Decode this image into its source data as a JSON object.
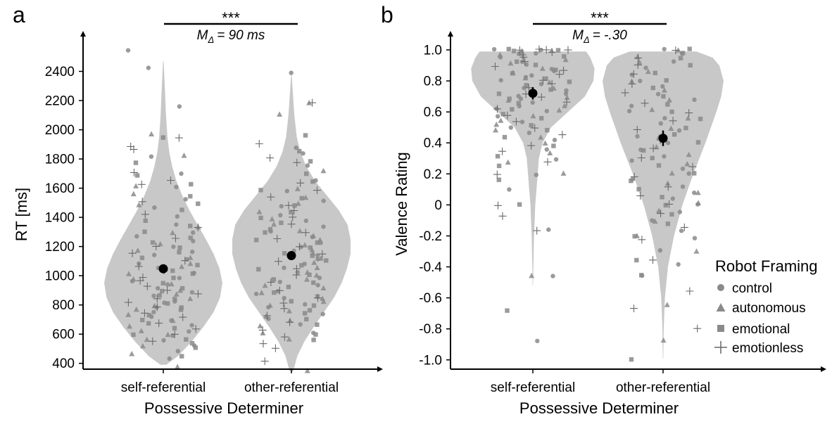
{
  "colors": {
    "violin": "#c8c8c8",
    "marker": "#8a8a8a",
    "mean": "#000000",
    "axis": "#000000"
  },
  "chart_data": [
    {
      "type": "violin",
      "panel_label": "a",
      "xlabel": "Possessive Determiner",
      "ylabel": "RT [ms]",
      "categories": [
        "self-referential",
        "other-referential"
      ],
      "ylim": [
        360,
        2600
      ],
      "yticks": [
        400,
        600,
        800,
        1000,
        1200,
        1400,
        1600,
        1800,
        2000,
        2200,
        2400
      ],
      "ytick_labels": [
        "400",
        "600",
        "800",
        "1000",
        "1200",
        "1400",
        "1600",
        "1800",
        "2000",
        "2200",
        "2400"
      ],
      "means": [
        1048,
        1138
      ],
      "error": [
        30,
        30
      ],
      "significance": {
        "stars": "***",
        "label": "M",
        "subscript": "Δ",
        "value_text": "= 90 ms"
      },
      "violins": [
        {
          "min": 390,
          "max": 2470,
          "widths": [
            [
              390,
              0.05
            ],
            [
              450,
              0.25
            ],
            [
              550,
              0.48
            ],
            [
              650,
              0.68
            ],
            [
              750,
              0.85
            ],
            [
              850,
              0.96
            ],
            [
              950,
              1.0
            ],
            [
              1050,
              0.95
            ],
            [
              1150,
              0.85
            ],
            [
              1250,
              0.72
            ],
            [
              1350,
              0.58
            ],
            [
              1450,
              0.44
            ],
            [
              1550,
              0.32
            ],
            [
              1650,
              0.22
            ],
            [
              1750,
              0.15
            ],
            [
              1850,
              0.1
            ],
            [
              1950,
              0.07
            ],
            [
              2100,
              0.045
            ],
            [
              2300,
              0.025
            ],
            [
              2470,
              0.005
            ]
          ]
        },
        {
          "min": 345,
          "max": 2380,
          "widths": [
            [
              345,
              0.03
            ],
            [
              450,
              0.1
            ],
            [
              550,
              0.22
            ],
            [
              650,
              0.38
            ],
            [
              750,
              0.55
            ],
            [
              850,
              0.72
            ],
            [
              950,
              0.85
            ],
            [
              1050,
              0.94
            ],
            [
              1150,
              1.0
            ],
            [
              1250,
              1.0
            ],
            [
              1350,
              0.95
            ],
            [
              1450,
              0.8
            ],
            [
              1550,
              0.6
            ],
            [
              1650,
              0.4
            ],
            [
              1750,
              0.25
            ],
            [
              1850,
              0.15
            ],
            [
              1950,
              0.09
            ],
            [
              2100,
              0.05
            ],
            [
              2250,
              0.025
            ],
            [
              2380,
              0.005
            ]
          ]
        }
      ],
      "points": {
        "self-referential": {
          "control": [
            2550,
            2420,
            2160,
            1820,
            1700,
            1610,
            1520,
            1470,
            1400,
            1350,
            1300,
            1270,
            1240,
            1200,
            1170,
            1140,
            1110,
            1080,
            1050,
            1020,
            990,
            960,
            940,
            910,
            880,
            860,
            830,
            810,
            780,
            750,
            720,
            690,
            660,
            620,
            590,
            560,
            520,
            480,
            430
          ],
          "autonomous": [
            1970,
            1830,
            1620,
            1560,
            1480,
            1330,
            1290,
            1220,
            1180,
            1130,
            1090,
            1060,
            1010,
            970,
            940,
            900,
            870,
            840,
            800,
            770,
            740,
            700,
            660,
            630,
            600,
            560,
            520,
            470,
            380
          ],
          "emotional": [
            1940,
            1780,
            1690,
            1620,
            1550,
            1500,
            1450,
            1380,
            1340,
            1300,
            1260,
            1230,
            1190,
            1160,
            1120,
            1080,
            1040,
            1010,
            980,
            950,
            920,
            890,
            860,
            840,
            810,
            780,
            760,
            730,
            700,
            670,
            640,
            600,
            570,
            540,
            500,
            450
          ],
          "emotionless": [
            1950,
            1880,
            1860,
            1700,
            1660,
            1620,
            1510,
            1420,
            1330,
            1260,
            1200,
            1150,
            1110,
            1070,
            1030,
            990,
            960,
            930,
            900,
            870,
            840,
            810,
            780,
            750,
            720,
            680,
            640,
            600,
            550
          ]
        },
        "other-referential": {
          "control": [
            2390,
            1880,
            1840,
            1760,
            1660,
            1580,
            1520,
            1470,
            1420,
            1380,
            1340,
            1300,
            1260,
            1230,
            1200,
            1170,
            1140,
            1110,
            1080,
            1050,
            1020,
            990,
            960,
            930,
            900,
            870,
            840,
            810,
            780,
            740,
            700,
            660,
            610
          ],
          "autonomous": [
            2180,
            2110,
            1720,
            1600,
            1540,
            1490,
            1440,
            1390,
            1350,
            1310,
            1270,
            1240,
            1210,
            1180,
            1150,
            1120,
            1090,
            1060,
            1030,
            1000,
            970,
            940,
            910,
            880,
            850,
            820,
            790,
            760,
            720,
            690,
            650,
            610,
            570,
            350
          ],
          "emotional": [
            1960,
            1860,
            1790,
            1700,
            1640,
            1590,
            1530,
            1480,
            1430,
            1390,
            1360,
            1320,
            1290,
            1250,
            1220,
            1190,
            1160,
            1130,
            1100,
            1070,
            1040,
            1010,
            980,
            950,
            920,
            890,
            860,
            830,
            800,
            770,
            740,
            700,
            660,
            600,
            560
          ],
          "emotionless": [
            2190,
            1900,
            1800,
            1780,
            1640,
            1590,
            1540,
            1480,
            1450,
            1400,
            1350,
            1300,
            1250,
            1200,
            1150,
            1100,
            1050,
            1000,
            950,
            900,
            850,
            810,
            770,
            720,
            680,
            630,
            580,
            540,
            500,
            410
          ]
        }
      }
    },
    {
      "type": "violin",
      "panel_label": "b",
      "xlabel": "Possessive Determiner",
      "ylabel": "Valence Rating",
      "categories": [
        "self-referential",
        "other-referential"
      ],
      "ylim": [
        -1.06,
        1.05
      ],
      "yticks": [
        -1.0,
        -0.8,
        -0.6,
        -0.4,
        -0.2,
        0,
        0.2,
        0.4,
        0.6,
        0.8,
        1.0
      ],
      "ytick_labels": [
        "-1.0",
        "-0.8",
        "-0.6",
        "-0.4",
        "-0.2",
        "0",
        "0.2",
        "0.4",
        "0.6",
        "0.8",
        "1.0"
      ],
      "means": [
        0.72,
        0.43
      ],
      "error": [
        0.04,
        0.05
      ],
      "significance": {
        "stars": "***",
        "label": "M",
        "subscript": "Δ",
        "value_text": "= -.30"
      },
      "legend": {
        "title": "Robot Framing",
        "position": "lower-right",
        "entries": [
          {
            "label": "control",
            "marker": "circle"
          },
          {
            "label": "autonomous",
            "marker": "triangle"
          },
          {
            "label": "emotional",
            "marker": "square"
          },
          {
            "label": "emotionless",
            "marker": "plus"
          }
        ]
      },
      "violins": [
        {
          "min": -0.52,
          "max": 0.99,
          "widths": [
            [
              -0.52,
              0.004
            ],
            [
              -0.4,
              0.008
            ],
            [
              -0.2,
              0.02
            ],
            [
              0.0,
              0.04
            ],
            [
              0.1,
              0.06
            ],
            [
              0.2,
              0.08
            ],
            [
              0.3,
              0.1
            ],
            [
              0.4,
              0.16
            ],
            [
              0.5,
              0.3
            ],
            [
              0.6,
              0.58
            ],
            [
              0.7,
              0.86
            ],
            [
              0.8,
              1.0
            ],
            [
              0.88,
              1.02
            ],
            [
              0.95,
              0.95
            ],
            [
              0.99,
              0.88
            ]
          ]
        },
        {
          "min": -0.99,
          "max": 0.99,
          "widths": [
            [
              -0.99,
              0.004
            ],
            [
              -0.8,
              0.01
            ],
            [
              -0.6,
              0.03
            ],
            [
              -0.4,
              0.08
            ],
            [
              -0.2,
              0.18
            ],
            [
              0.0,
              0.32
            ],
            [
              0.2,
              0.5
            ],
            [
              0.4,
              0.7
            ],
            [
              0.6,
              0.88
            ],
            [
              0.7,
              0.96
            ],
            [
              0.8,
              1.0
            ],
            [
              0.9,
              0.93
            ],
            [
              0.95,
              0.82
            ],
            [
              0.99,
              0.55
            ]
          ]
        }
      ],
      "points": {
        "self-referential": {
          "control": [
            1.0,
            1.0,
            0.98,
            0.95,
            0.93,
            0.9,
            0.88,
            0.86,
            0.84,
            0.82,
            0.8,
            0.78,
            0.76,
            0.74,
            0.72,
            0.7,
            0.68,
            0.66,
            0.64,
            0.62,
            0.6,
            0.57,
            0.54,
            0.5,
            0.46,
            0.42,
            0.36,
            0.3,
            0.2,
            0.1,
            -0.16,
            -0.46,
            -0.88
          ],
          "autonomous": [
            1.0,
            1.0,
            0.97,
            0.94,
            0.91,
            0.88,
            0.85,
            0.82,
            0.79,
            0.76,
            0.73,
            0.7,
            0.67,
            0.64,
            0.61,
            0.58,
            0.55,
            0.52,
            0.48,
            0.44,
            0.4,
            0.34,
            0.28,
            0.2,
            -0.45
          ],
          "emotional": [
            1.0,
            1.0,
            1.0,
            0.98,
            0.96,
            0.93,
            0.9,
            0.87,
            0.85,
            0.82,
            0.8,
            0.77,
            0.74,
            0.71,
            0.68,
            0.65,
            0.62,
            0.59,
            0.56,
            0.52,
            0.48,
            0.44,
            0.38,
            0.32,
            0.25,
            0.16,
            0.0,
            -0.68
          ],
          "emotionless": [
            1.0,
            1.0,
            1.0,
            1.0,
            0.99,
            0.97,
            0.95,
            0.92,
            0.9,
            0.87,
            0.84,
            0.81,
            0.78,
            0.75,
            0.72,
            0.69,
            0.66,
            0.62,
            0.58,
            0.54,
            0.5,
            0.45,
            0.38,
            0.34,
            0.28,
            0.19,
            0.0,
            -0.07,
            -0.16
          ]
        },
        "other-referential": {
          "control": [
            1.0,
            0.97,
            0.93,
            0.88,
            0.84,
            0.8,
            0.76,
            0.72,
            0.68,
            0.64,
            0.6,
            0.56,
            0.52,
            0.48,
            0.44,
            0.4,
            0.36,
            0.32,
            0.28,
            0.24,
            0.2,
            0.16,
            0.12,
            0.08,
            0.04,
            0.0,
            -0.05,
            -0.1,
            -0.16,
            -0.22,
            -0.3,
            -0.38,
            -0.45
          ],
          "autonomous": [
            1.0,
            0.96,
            0.92,
            0.86,
            0.8,
            0.74,
            0.68,
            0.62,
            0.56,
            0.5,
            0.44,
            0.38,
            0.32,
            0.26,
            0.2,
            0.14,
            0.08,
            0.02,
            -0.04,
            -0.1,
            -0.2,
            -0.3,
            -0.65,
            -0.87
          ],
          "emotional": [
            1.0,
            0.98,
            0.95,
            0.9,
            0.85,
            0.8,
            0.75,
            0.7,
            0.65,
            0.6,
            0.55,
            0.5,
            0.45,
            0.4,
            0.35,
            0.3,
            0.25,
            0.2,
            0.15,
            0.1,
            0.05,
            0.0,
            -0.06,
            -0.12,
            -0.2,
            -0.35,
            -0.45,
            -1.0
          ],
          "emotionless": [
            1.0,
            0.95,
            0.9,
            0.84,
            0.78,
            0.72,
            0.66,
            0.6,
            0.54,
            0.48,
            0.42,
            0.36,
            0.3,
            0.24,
            0.18,
            0.12,
            0.06,
            0.0,
            -0.06,
            -0.14,
            -0.22,
            -0.35,
            -0.56,
            -0.67,
            -0.8
          ]
        }
      }
    }
  ]
}
